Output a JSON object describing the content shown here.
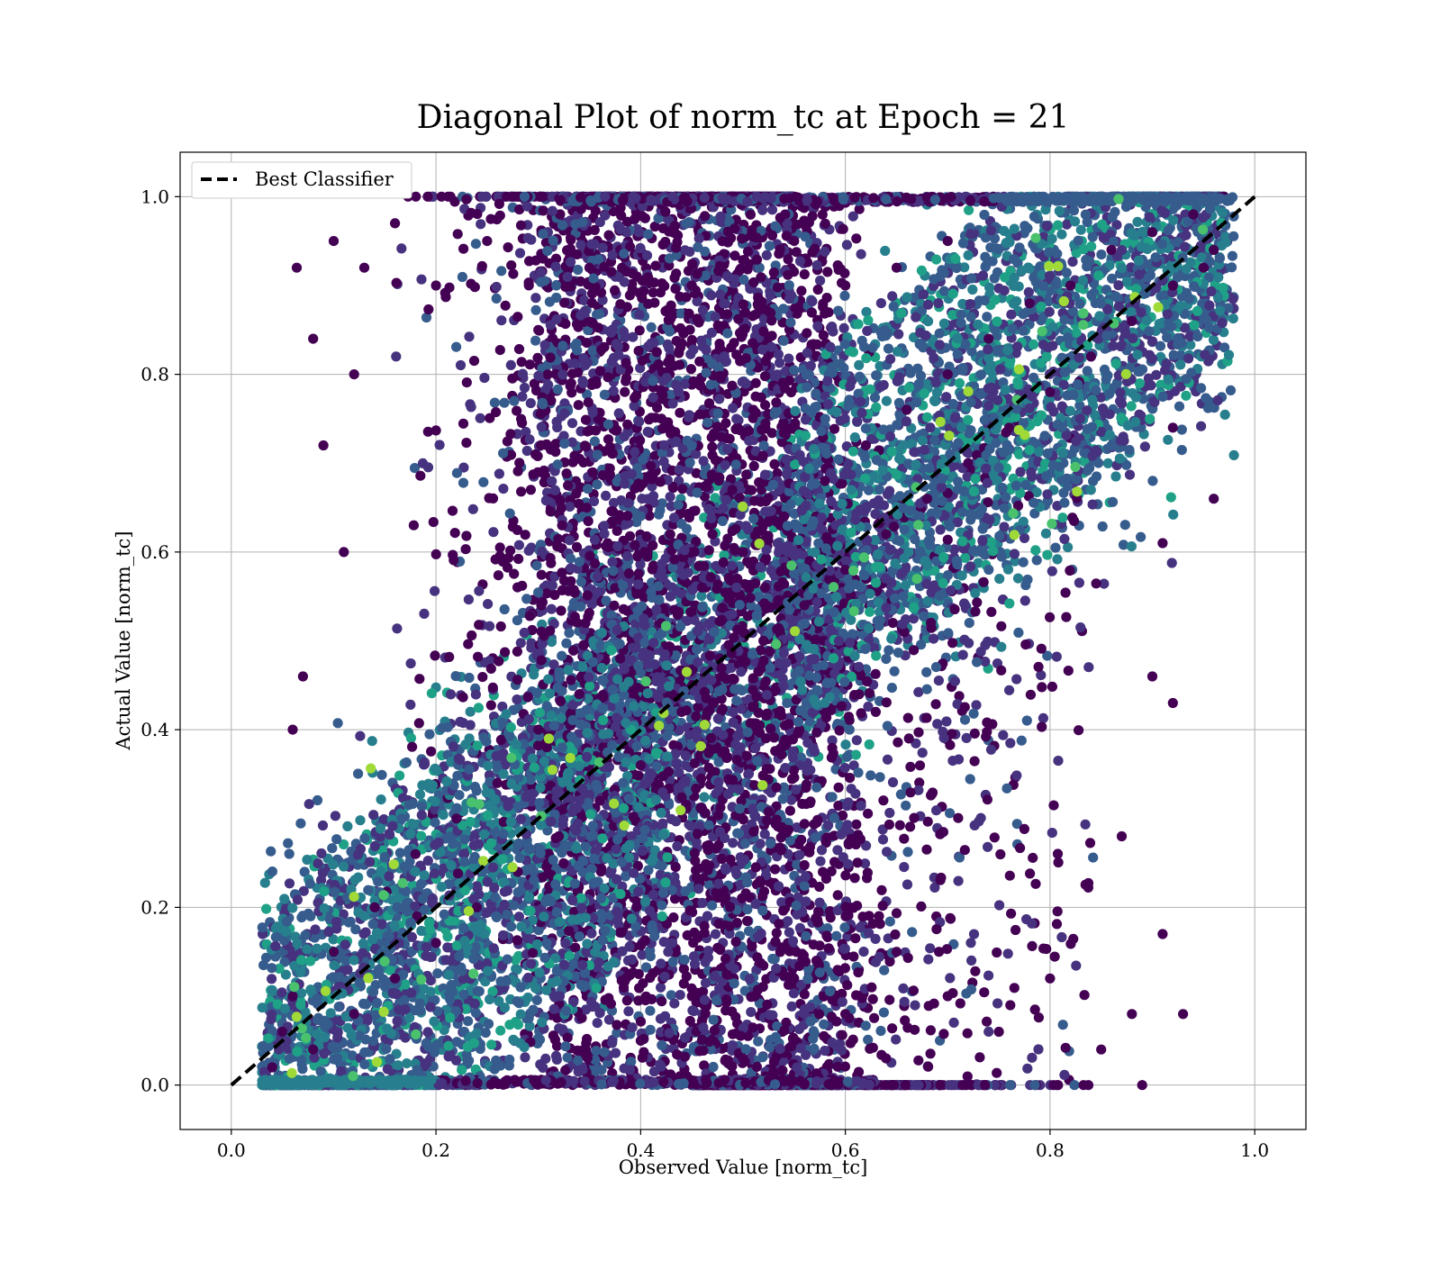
{
  "chart_data": {
    "type": "scatter",
    "title": "Diagonal Plot of norm_tc at Epoch = 21",
    "xlabel": "Observed Value [norm_tc]",
    "ylabel": "Actual Value [norm_tc]",
    "xlim": [
      -0.05,
      1.05
    ],
    "ylim": [
      -0.05,
      1.05
    ],
    "xticks": [
      0.0,
      0.2,
      0.4,
      0.6,
      0.8,
      1.0
    ],
    "yticks": [
      0.0,
      0.2,
      0.4,
      0.6,
      0.8,
      1.0
    ],
    "x_tick_labels": [
      "0.0",
      "0.2",
      "0.4",
      "0.6",
      "0.8",
      "1.0"
    ],
    "y_tick_labels": [
      "0.0",
      "0.2",
      "0.4",
      "0.6",
      "0.8",
      "1.0"
    ],
    "grid": true,
    "legend_position": "upper-left",
    "colormap": "viridis",
    "colors": {
      "dark": "#440154",
      "purple": "#46327e",
      "blue": "#365c8d",
      "teal": "#277f8e",
      "green": "#1fa187",
      "lightgreen": "#4ac16d",
      "yellow": "#a0da39"
    },
    "series": [
      {
        "name": "Best Classifier",
        "kind": "line",
        "style": "dashed",
        "color": "#000000",
        "x": [
          0.0,
          1.0
        ],
        "y": [
          0.0,
          1.0
        ]
      },
      {
        "kind": "scatter",
        "description_of_density": "dense band along diagonal",
        "points": [
          [
            0.04,
            0.02
          ],
          [
            0.05,
            0.06
          ],
          [
            0.06,
            0.1
          ],
          [
            0.08,
            0.04
          ],
          [
            0.1,
            0.15
          ],
          [
            0.12,
            0.08
          ],
          [
            0.14,
            0.2
          ],
          [
            0.16,
            0.12
          ],
          [
            0.18,
            0.26
          ],
          [
            0.2,
            0.16
          ],
          [
            0.22,
            0.3
          ],
          [
            0.24,
            0.2
          ],
          [
            0.26,
            0.34
          ],
          [
            0.28,
            0.24
          ],
          [
            0.3,
            0.4
          ],
          [
            0.32,
            0.28
          ],
          [
            0.34,
            0.44
          ],
          [
            0.36,
            0.32
          ],
          [
            0.38,
            0.48
          ],
          [
            0.4,
            0.36
          ],
          [
            0.42,
            0.52
          ],
          [
            0.44,
            0.42
          ],
          [
            0.46,
            0.56
          ],
          [
            0.48,
            0.46
          ],
          [
            0.5,
            0.6
          ],
          [
            0.52,
            0.5
          ],
          [
            0.54,
            0.64
          ],
          [
            0.56,
            0.54
          ],
          [
            0.58,
            0.68
          ],
          [
            0.6,
            0.58
          ],
          [
            0.62,
            0.72
          ],
          [
            0.64,
            0.62
          ],
          [
            0.66,
            0.76
          ],
          [
            0.68,
            0.66
          ],
          [
            0.7,
            0.8
          ],
          [
            0.72,
            0.7
          ],
          [
            0.74,
            0.84
          ],
          [
            0.76,
            0.74
          ],
          [
            0.78,
            0.88
          ],
          [
            0.8,
            0.78
          ],
          [
            0.82,
            0.9
          ],
          [
            0.84,
            0.82
          ],
          [
            0.86,
            0.94
          ],
          [
            0.88,
            0.86
          ],
          [
            0.9,
            0.96
          ],
          [
            0.92,
            0.9
          ],
          [
            0.94,
            0.98
          ],
          [
            0.96,
            0.94
          ],
          [
            0.97,
            1.0
          ],
          [
            0.95,
            0.92
          ],
          [
            0.1,
            0.95
          ],
          [
            0.13,
            0.92
          ],
          [
            0.16,
            0.97
          ],
          [
            0.09,
            0.72
          ],
          [
            0.12,
            0.8
          ],
          [
            0.11,
            0.6
          ],
          [
            0.07,
            0.46
          ],
          [
            0.06,
            0.4
          ],
          [
            0.08,
            0.84
          ],
          [
            0.064,
            0.92
          ],
          [
            0.2,
            0.9
          ],
          [
            0.25,
            0.95
          ],
          [
            0.3,
            0.85
          ],
          [
            0.35,
            0.92
          ],
          [
            0.45,
            0.9
          ],
          [
            0.5,
            0.85
          ],
          [
            0.55,
            0.95
          ],
          [
            0.6,
            0.9
          ],
          [
            0.65,
            0.92
          ],
          [
            0.7,
            0.95
          ],
          [
            0.4,
            0.05
          ],
          [
            0.45,
            0.1
          ],
          [
            0.5,
            0.03
          ],
          [
            0.55,
            0.12
          ],
          [
            0.6,
            0.08
          ],
          [
            0.65,
            0.15
          ],
          [
            0.7,
            0.1
          ],
          [
            0.75,
            0.06
          ],
          [
            0.8,
            0.12
          ],
          [
            0.85,
            0.04
          ],
          [
            0.89,
            0.0
          ],
          [
            0.93,
            0.08
          ],
          [
            0.91,
            0.17
          ],
          [
            0.9,
            0.46
          ],
          [
            0.92,
            0.43
          ],
          [
            0.91,
            0.61
          ],
          [
            0.92,
            0.74
          ],
          [
            0.96,
            0.66
          ],
          [
            0.87,
            0.28
          ],
          [
            0.88,
            0.08
          ]
        ]
      }
    ]
  }
}
